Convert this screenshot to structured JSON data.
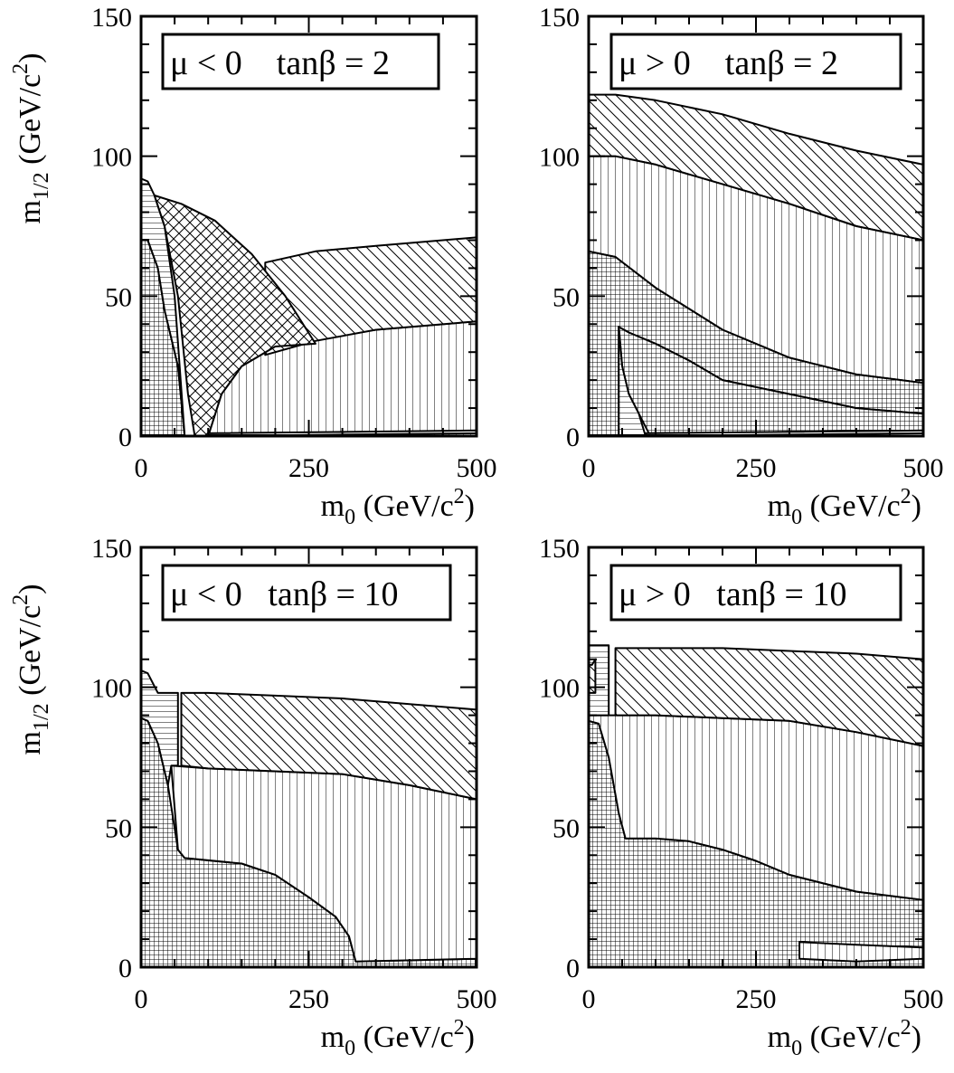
{
  "figure": {
    "ylabel_main": "m",
    "ylabel_sub": "1/2",
    "ylabel_unit": " (GeV/c",
    "ylabel_sup": "2",
    "ylabel_close": ")",
    "xlabel_main": "m",
    "xlabel_sub": "0",
    "xlabel_unit": " (GeV/c",
    "xlabel_sup": "2",
    "xlabel_close": ")"
  },
  "chart_data": [
    {
      "type": "area",
      "panel_label": "μ < 0    tanβ = 2",
      "xlim": [
        0,
        500
      ],
      "ylim": [
        0,
        150
      ],
      "xticks": [
        "0",
        "250",
        "500"
      ],
      "yticks": [
        "0",
        "50",
        "100",
        "150"
      ],
      "regions": [
        {
          "pattern": "vhatch",
          "points": [
            [
              0,
              0
            ],
            [
              0,
              70
            ],
            [
              10,
              70
            ],
            [
              25,
              60
            ],
            [
              35,
              45
            ],
            [
              55,
              25
            ],
            [
              65,
              0
            ]
          ]
        },
        {
          "pattern": "vert",
          "points": [
            [
              100,
              0
            ],
            [
              120,
              15
            ],
            [
              150,
              25
            ],
            [
              200,
              32
            ],
            [
              260,
              35
            ],
            [
              350,
              38
            ],
            [
              500,
              41
            ],
            [
              500,
              0
            ]
          ]
        },
        {
          "pattern": "diag",
          "points": [
            [
              185,
              62
            ],
            [
              260,
              66
            ],
            [
              350,
              68
            ],
            [
              500,
              71
            ],
            [
              500,
              41
            ],
            [
              350,
              38
            ],
            [
              260,
              34
            ],
            [
              185,
              29
            ]
          ]
        },
        {
          "pattern": "hatch",
          "points": [
            [
              0,
              70
            ],
            [
              0,
              92
            ],
            [
              10,
              91
            ],
            [
              20,
              86
            ],
            [
              35,
              75
            ],
            [
              50,
              50
            ],
            [
              65,
              0
            ],
            [
              55,
              25
            ],
            [
              35,
              45
            ],
            [
              25,
              60
            ],
            [
              10,
              70
            ]
          ]
        },
        {
          "pattern": "cross",
          "points": [
            [
              20,
              86
            ],
            [
              60,
              83
            ],
            [
              110,
              77
            ],
            [
              165,
              65
            ],
            [
              215,
              50
            ],
            [
              260,
              33
            ],
            [
              200,
              32
            ],
            [
              150,
              25
            ],
            [
              120,
              15
            ],
            [
              100,
              0
            ],
            [
              80,
              0
            ],
            [
              70,
              15
            ],
            [
              55,
              50
            ],
            [
              35,
              75
            ]
          ]
        },
        {
          "pattern": "hatch",
          "points": [
            [
              100,
              0
            ],
            [
              500,
              1
            ],
            [
              500,
              2
            ],
            [
              100,
              1
            ]
          ]
        }
      ]
    },
    {
      "type": "area",
      "panel_label": "μ > 0    tanβ = 2",
      "xlim": [
        0,
        500
      ],
      "ylim": [
        0,
        150
      ],
      "xticks": [
        "0",
        "250",
        "500"
      ],
      "yticks": [
        "0",
        "50",
        "100",
        "150"
      ],
      "regions": [
        {
          "pattern": "diag",
          "points": [
            [
              0,
              122
            ],
            [
              40,
              122
            ],
            [
              100,
              120
            ],
            [
              200,
              115
            ],
            [
              300,
              108
            ],
            [
              400,
              102
            ],
            [
              500,
              97
            ],
            [
              500,
              70
            ],
            [
              400,
              75
            ],
            [
              300,
              83
            ],
            [
              200,
              90
            ],
            [
              100,
              97
            ],
            [
              40,
              100
            ],
            [
              0,
              100
            ]
          ]
        },
        {
          "pattern": "vert",
          "points": [
            [
              0,
              100
            ],
            [
              40,
              100
            ],
            [
              100,
              97
            ],
            [
              200,
              90
            ],
            [
              300,
              83
            ],
            [
              400,
              75
            ],
            [
              500,
              70
            ],
            [
              500,
              19
            ],
            [
              400,
              22
            ],
            [
              300,
              28
            ],
            [
              200,
              38
            ],
            [
              100,
              53
            ],
            [
              40,
              64
            ],
            [
              0,
              66
            ]
          ]
        },
        {
          "pattern": "vhatch",
          "points": [
            [
              0,
              66
            ],
            [
              40,
              64
            ],
            [
              100,
              53
            ],
            [
              200,
              38
            ],
            [
              300,
              28
            ],
            [
              400,
              22
            ],
            [
              500,
              19
            ],
            [
              500,
              8
            ],
            [
              400,
              10
            ],
            [
              300,
              15
            ],
            [
              200,
              20
            ],
            [
              150,
              27
            ],
            [
              100,
              33
            ],
            [
              60,
              37
            ],
            [
              45,
              39
            ],
            [
              45,
              0
            ],
            [
              0,
              0
            ]
          ]
        },
        {
          "pattern": "vhatch",
          "points": [
            [
              45,
              39
            ],
            [
              60,
              37
            ],
            [
              100,
              33
            ],
            [
              150,
              27
            ],
            [
              200,
              20
            ],
            [
              300,
              15
            ],
            [
              400,
              10
            ],
            [
              500,
              8
            ],
            [
              500,
              2
            ],
            [
              90,
              1
            ],
            [
              60,
              15
            ],
            [
              50,
              25
            ]
          ]
        },
        {
          "pattern": "hatch",
          "points": [
            [
              45,
              0
            ],
            [
              45,
              39
            ],
            [
              50,
              25
            ],
            [
              60,
              15
            ],
            [
              75,
              8
            ],
            [
              85,
              0
            ]
          ]
        },
        {
          "pattern": "hatch",
          "points": [
            [
              85,
              0
            ],
            [
              500,
              1
            ],
            [
              500,
              2
            ],
            [
              85,
              1
            ]
          ]
        }
      ]
    },
    {
      "type": "area",
      "panel_label": "μ < 0   tanβ = 10",
      "xlim": [
        0,
        500
      ],
      "ylim": [
        0,
        150
      ],
      "xticks": [
        "0",
        "250",
        "500"
      ],
      "yticks": [
        "0",
        "50",
        "100",
        "150"
      ],
      "regions": [
        {
          "pattern": "vhatch",
          "points": [
            [
              0,
              0
            ],
            [
              0,
              89
            ],
            [
              10,
              88
            ],
            [
              25,
              80
            ],
            [
              40,
              65
            ],
            [
              55,
              42
            ],
            [
              65,
              39
            ],
            [
              150,
              37
            ],
            [
              200,
              33
            ],
            [
              250,
              25
            ],
            [
              290,
              18
            ],
            [
              310,
              11
            ],
            [
              320,
              2
            ],
            [
              500,
              3
            ],
            [
              500,
              0
            ]
          ]
        },
        {
          "pattern": "vert",
          "points": [
            [
              45,
              72
            ],
            [
              100,
              71
            ],
            [
              200,
              70
            ],
            [
              300,
              69
            ],
            [
              400,
              65
            ],
            [
              500,
              60
            ],
            [
              500,
              3
            ],
            [
              320,
              2
            ],
            [
              310,
              11
            ],
            [
              290,
              18
            ],
            [
              250,
              25
            ],
            [
              200,
              33
            ],
            [
              150,
              37
            ],
            [
              65,
              39
            ],
            [
              55,
              42
            ]
          ]
        },
        {
          "pattern": "diag",
          "points": [
            [
              60,
              98
            ],
            [
              100,
              98
            ],
            [
              200,
              97
            ],
            [
              300,
              96
            ],
            [
              400,
              94
            ],
            [
              500,
              92
            ],
            [
              500,
              60
            ],
            [
              400,
              65
            ],
            [
              300,
              69
            ],
            [
              200,
              70
            ],
            [
              100,
              71
            ],
            [
              60,
              72
            ]
          ]
        },
        {
          "pattern": "hatch",
          "points": [
            [
              0,
              89
            ],
            [
              0,
              106
            ],
            [
              10,
              105
            ],
            [
              25,
              98
            ],
            [
              55,
              98
            ],
            [
              55,
              72
            ],
            [
              45,
              72
            ],
            [
              40,
              65
            ],
            [
              25,
              80
            ],
            [
              10,
              88
            ]
          ]
        }
      ]
    },
    {
      "type": "area",
      "panel_label": "μ > 0   tanβ = 10",
      "xlim": [
        0,
        500
      ],
      "ylim": [
        0,
        150
      ],
      "xticks": [
        "0",
        "250",
        "500"
      ],
      "yticks": [
        "0",
        "50",
        "100",
        "150"
      ],
      "regions": [
        {
          "pattern": "vhatch",
          "points": [
            [
              0,
              0
            ],
            [
              0,
              88
            ],
            [
              15,
              87
            ],
            [
              30,
              75
            ],
            [
              45,
              55
            ],
            [
              55,
              46
            ],
            [
              100,
              46
            ],
            [
              150,
              45
            ],
            [
              200,
              42
            ],
            [
              250,
              38
            ],
            [
              300,
              33
            ],
            [
              400,
              27
            ],
            [
              500,
              24
            ],
            [
              500,
              0
            ]
          ]
        },
        {
          "pattern": "vert",
          "points": [
            [
              0,
              88
            ],
            [
              0,
              90
            ],
            [
              40,
              90
            ],
            [
              100,
              90
            ],
            [
              200,
              89
            ],
            [
              300,
              88
            ],
            [
              400,
              84
            ],
            [
              500,
              79
            ],
            [
              500,
              24
            ],
            [
              400,
              27
            ],
            [
              300,
              33
            ],
            [
              250,
              38
            ],
            [
              200,
              42
            ],
            [
              150,
              45
            ],
            [
              100,
              46
            ],
            [
              55,
              46
            ],
            [
              45,
              55
            ],
            [
              30,
              75
            ],
            [
              15,
              87
            ]
          ]
        },
        {
          "pattern": "diag",
          "points": [
            [
              40,
              90
            ],
            [
              40,
              114
            ],
            [
              50,
              114
            ],
            [
              100,
              114
            ],
            [
              200,
              114
            ],
            [
              300,
              113
            ],
            [
              400,
              112
            ],
            [
              500,
              110
            ],
            [
              500,
              79
            ],
            [
              400,
              84
            ],
            [
              300,
              88
            ],
            [
              200,
              89
            ],
            [
              100,
              90
            ]
          ]
        },
        {
          "pattern": "hatch",
          "points": [
            [
              0,
              90
            ],
            [
              0,
              115
            ],
            [
              30,
              115
            ],
            [
              30,
              90
            ]
          ]
        },
        {
          "pattern": "diag",
          "points": [
            [
              0,
              108
            ],
            [
              5,
              108
            ],
            [
              10,
              110
            ],
            [
              10,
              98
            ],
            [
              0,
              98
            ]
          ]
        },
        {
          "pattern": "vert",
          "points": [
            [
              315,
              3
            ],
            [
              315,
              9
            ],
            [
              400,
              8
            ],
            [
              500,
              7
            ],
            [
              500,
              3
            ],
            [
              400,
              2
            ]
          ]
        }
      ]
    }
  ]
}
